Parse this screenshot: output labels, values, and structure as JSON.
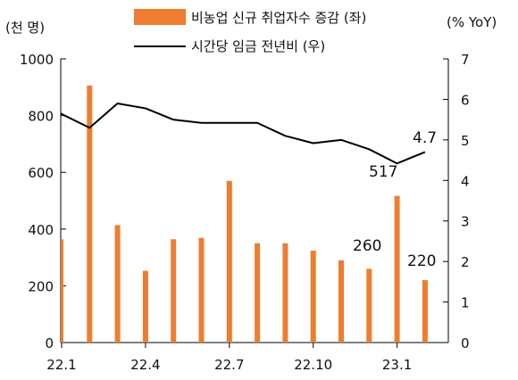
{
  "chart_data": {
    "type": "bar+line",
    "categories": [
      "22.1",
      "22.2",
      "22.3",
      "22.4",
      "22.5",
      "22.6",
      "22.7",
      "22.8",
      "22.9",
      "22.10",
      "22.11",
      "22.12",
      "23.1",
      "23.2"
    ],
    "x_tick_labels": [
      "22.1",
      "22.4",
      "22.7",
      "22.10",
      "23.1"
    ],
    "series": [
      {
        "name": "비농업 신규 취업자수 증감 (좌)",
        "type": "bar",
        "axis": "left",
        "color": "#ED7D31",
        "values": [
          364,
          906,
          414,
          253,
          364,
          369,
          570,
          350,
          350,
          324,
          290,
          260,
          517,
          220
        ]
      },
      {
        "name": "시간당 임금 전년비 (우)",
        "type": "line",
        "axis": "right",
        "color": "#000000",
        "values": [
          5.65,
          5.3,
          5.9,
          5.78,
          5.5,
          5.42,
          5.42,
          5.42,
          5.1,
          4.92,
          5.0,
          4.77,
          4.42,
          4.7
        ]
      }
    ],
    "y_left": {
      "unit_label": "(천 명)",
      "min": 0,
      "max": 1000,
      "ticks": [
        "0",
        "200",
        "400",
        "600",
        "800",
        "1000"
      ]
    },
    "y_right": {
      "unit_label": "(% YoY)",
      "min": 0,
      "max": 7,
      "ticks": [
        "0",
        "1",
        "2",
        "3",
        "4",
        "5",
        "6",
        "7"
      ]
    },
    "annotations": [
      "260",
      "517",
      "220",
      "4.7"
    ],
    "legend_position": "top"
  }
}
